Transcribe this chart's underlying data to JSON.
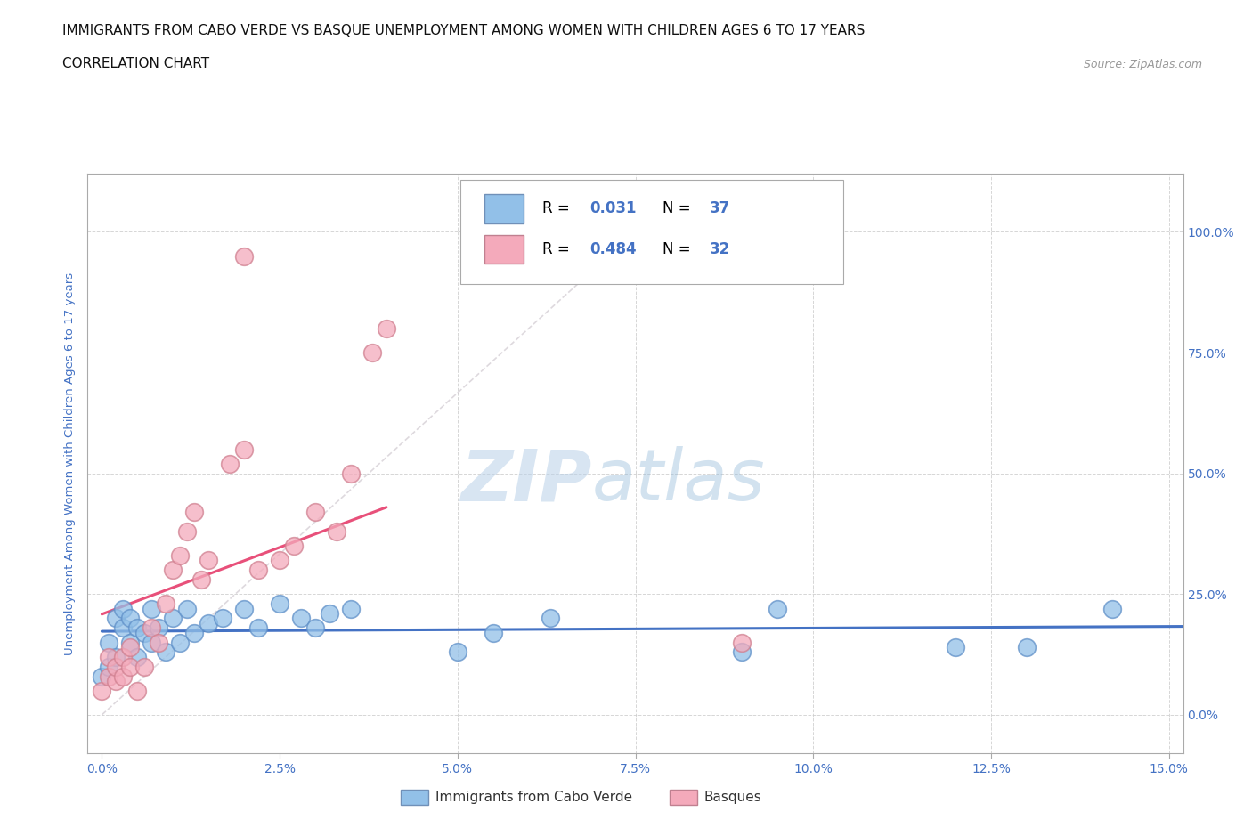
{
  "title_line1": "IMMIGRANTS FROM CABO VERDE VS BASQUE UNEMPLOYMENT AMONG WOMEN WITH CHILDREN AGES 6 TO 17 YEARS",
  "title_line2": "CORRELATION CHART",
  "source": "Source: ZipAtlas.com",
  "ylabel": "Unemployment Among Women with Children Ages 6 to 17 years",
  "watermark_zip": "ZIP",
  "watermark_atlas": "atlas",
  "xlim": [
    -0.002,
    0.152
  ],
  "ylim": [
    -0.08,
    1.12
  ],
  "xlabel_ticks": [
    0.0,
    0.025,
    0.05,
    0.075,
    0.1,
    0.125,
    0.15
  ],
  "xlabel_labels": [
    "0.0%",
    "2.5%",
    "5.0%",
    "7.5%",
    "10.0%",
    "12.5%",
    "15.0%"
  ],
  "ylabel_ticks": [
    0.0,
    0.25,
    0.5,
    0.75,
    1.0
  ],
  "ylabel_labels": [
    "0.0%",
    "25.0%",
    "50.0%",
    "75.0%",
    "100.0%"
  ],
  "blue_scatter_x": [
    0.0,
    0.001,
    0.001,
    0.002,
    0.002,
    0.003,
    0.003,
    0.004,
    0.004,
    0.005,
    0.005,
    0.006,
    0.007,
    0.007,
    0.008,
    0.009,
    0.01,
    0.011,
    0.012,
    0.013,
    0.015,
    0.017,
    0.02,
    0.022,
    0.025,
    0.028,
    0.03,
    0.032,
    0.035,
    0.05,
    0.055,
    0.063,
    0.09,
    0.095,
    0.12,
    0.13,
    0.142
  ],
  "blue_scatter_y": [
    0.08,
    0.1,
    0.15,
    0.12,
    0.2,
    0.18,
    0.22,
    0.15,
    0.2,
    0.12,
    0.18,
    0.17,
    0.15,
    0.22,
    0.18,
    0.13,
    0.2,
    0.15,
    0.22,
    0.17,
    0.19,
    0.2,
    0.22,
    0.18,
    0.23,
    0.2,
    0.18,
    0.21,
    0.22,
    0.13,
    0.17,
    0.2,
    0.13,
    0.22,
    0.14,
    0.14,
    0.22
  ],
  "pink_scatter_x": [
    0.0,
    0.001,
    0.001,
    0.002,
    0.002,
    0.003,
    0.003,
    0.004,
    0.004,
    0.005,
    0.006,
    0.007,
    0.008,
    0.009,
    0.01,
    0.011,
    0.012,
    0.013,
    0.014,
    0.015,
    0.018,
    0.02,
    0.022,
    0.025,
    0.027,
    0.03,
    0.033,
    0.035,
    0.038,
    0.04,
    0.09,
    0.02
  ],
  "pink_scatter_y": [
    0.05,
    0.08,
    0.12,
    0.07,
    0.1,
    0.08,
    0.12,
    0.1,
    0.14,
    0.05,
    0.1,
    0.18,
    0.15,
    0.23,
    0.3,
    0.33,
    0.38,
    0.42,
    0.28,
    0.32,
    0.52,
    0.55,
    0.3,
    0.32,
    0.35,
    0.42,
    0.38,
    0.5,
    0.75,
    0.8,
    0.15,
    0.95
  ],
  "blue_color": "#92C0E8",
  "pink_color": "#F4AABB",
  "blue_line_color": "#4472C4",
  "pink_line_color": "#E8507A",
  "diag_color": "#D0C0C8",
  "r_n_color": "#4472C4",
  "title_color": "#111111",
  "axis_label_color": "#4472C4",
  "source_color": "#999999",
  "background_color": "#FFFFFF",
  "grid_color": "#CCCCCC",
  "spine_color": "#AAAAAA"
}
